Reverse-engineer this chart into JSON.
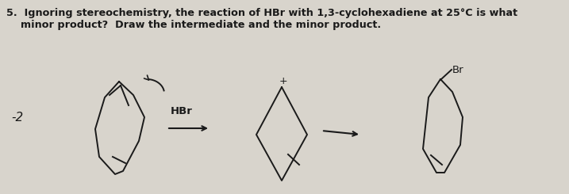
{
  "background_color": "#d8d4cc",
  "text_question_line1": "5.  Ignoring stereochemistry, the reaction of HBr with 1,3-cyclohexadiene at 25°C is what",
  "text_question_line2": "    minor product?  Draw the intermediate and the minor product.",
  "label_minus2": "-2",
  "label_hbr": "HBr",
  "label_br": "Br",
  "label_plus": "+",
  "fig_width": 7.17,
  "fig_height": 2.45,
  "dpi": 100,
  "ink_color": "#1a1a1a"
}
